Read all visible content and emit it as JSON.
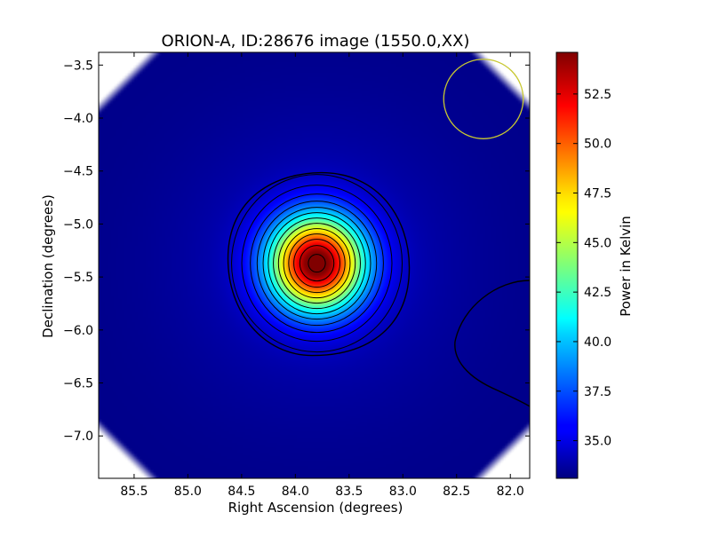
{
  "chart_data": {
    "type": "heatmap",
    "title": "ORION-A, ID:28676 image (1550.0,XX)",
    "xlabel": "Right Ascension (degrees)",
    "ylabel": "Declination (degrees)",
    "xlim": [
      85.83,
      81.82
    ],
    "ylim": [
      -7.4,
      -3.38
    ],
    "x_ticks": [
      85.5,
      85.0,
      84.5,
      84.0,
      83.5,
      83.0,
      82.5,
      82.0
    ],
    "x_tick_labels": [
      "85.5",
      "85.0",
      "84.5",
      "84.0",
      "83.5",
      "83.0",
      "82.5",
      "82.0"
    ],
    "y_ticks": [
      -3.5,
      -4.0,
      -4.5,
      -5.0,
      -5.5,
      -6.0,
      -6.5,
      -7.0
    ],
    "y_tick_labels": [
      "−3.5",
      "−4.0",
      "−4.5",
      "−5.0",
      "−5.5",
      "−6.0",
      "−6.5",
      "−7.0"
    ],
    "colormap": "jet",
    "colorbar": {
      "label": "Power in Kelvin",
      "range": [
        33.1,
        54.6
      ],
      "ticks": [
        35.0,
        37.5,
        40.0,
        42.5,
        45.0,
        47.5,
        50.0,
        52.5
      ],
      "tick_labels": [
        "35.0",
        "37.5",
        "40.0",
        "42.5",
        "45.0",
        "47.5",
        "50.0",
        "52.5"
      ]
    },
    "source": {
      "ra": 83.8,
      "dec": -5.37,
      "peak": 54.6,
      "sigma_ra": 0.3,
      "sigma_dec": 0.3
    },
    "background_level": 33.3,
    "beam_circle": {
      "ra": 82.25,
      "dec": -3.82,
      "radius_deg": 0.37,
      "color": "#c8c832"
    },
    "contour_color": "#000000"
  }
}
